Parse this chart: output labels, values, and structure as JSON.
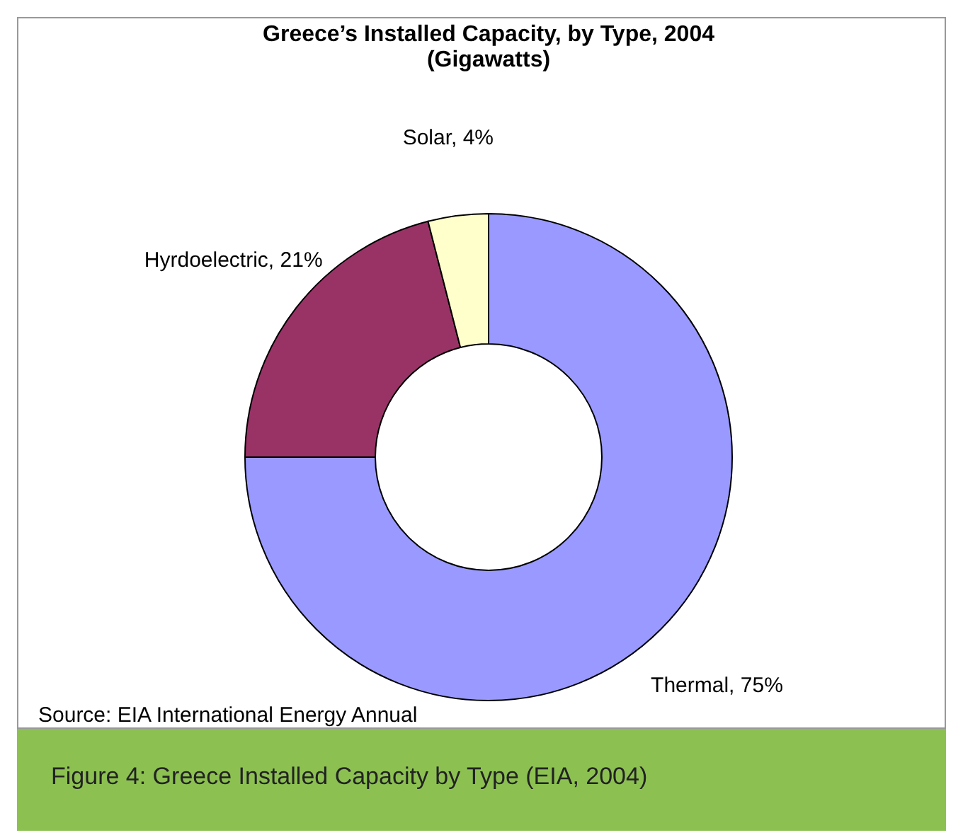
{
  "chart_data": {
    "type": "donut",
    "title": "Greece’s Installed Capacity, by Type, 2004",
    "subtitle": "(Gigawatts)",
    "categories": [
      "Thermal",
      "Hyrdoelectric",
      "Solar"
    ],
    "values": [
      75,
      21,
      4
    ],
    "value_labels": [
      "75%",
      "21%",
      "4%"
    ],
    "colors": [
      "#9999ff",
      "#993366",
      "#ffffcc"
    ],
    "annotations": [
      "Source: EIA International Energy Annual",
      "Figure 4: Greece Installed Capacity by Type (EIA, 2004)"
    ]
  }
}
